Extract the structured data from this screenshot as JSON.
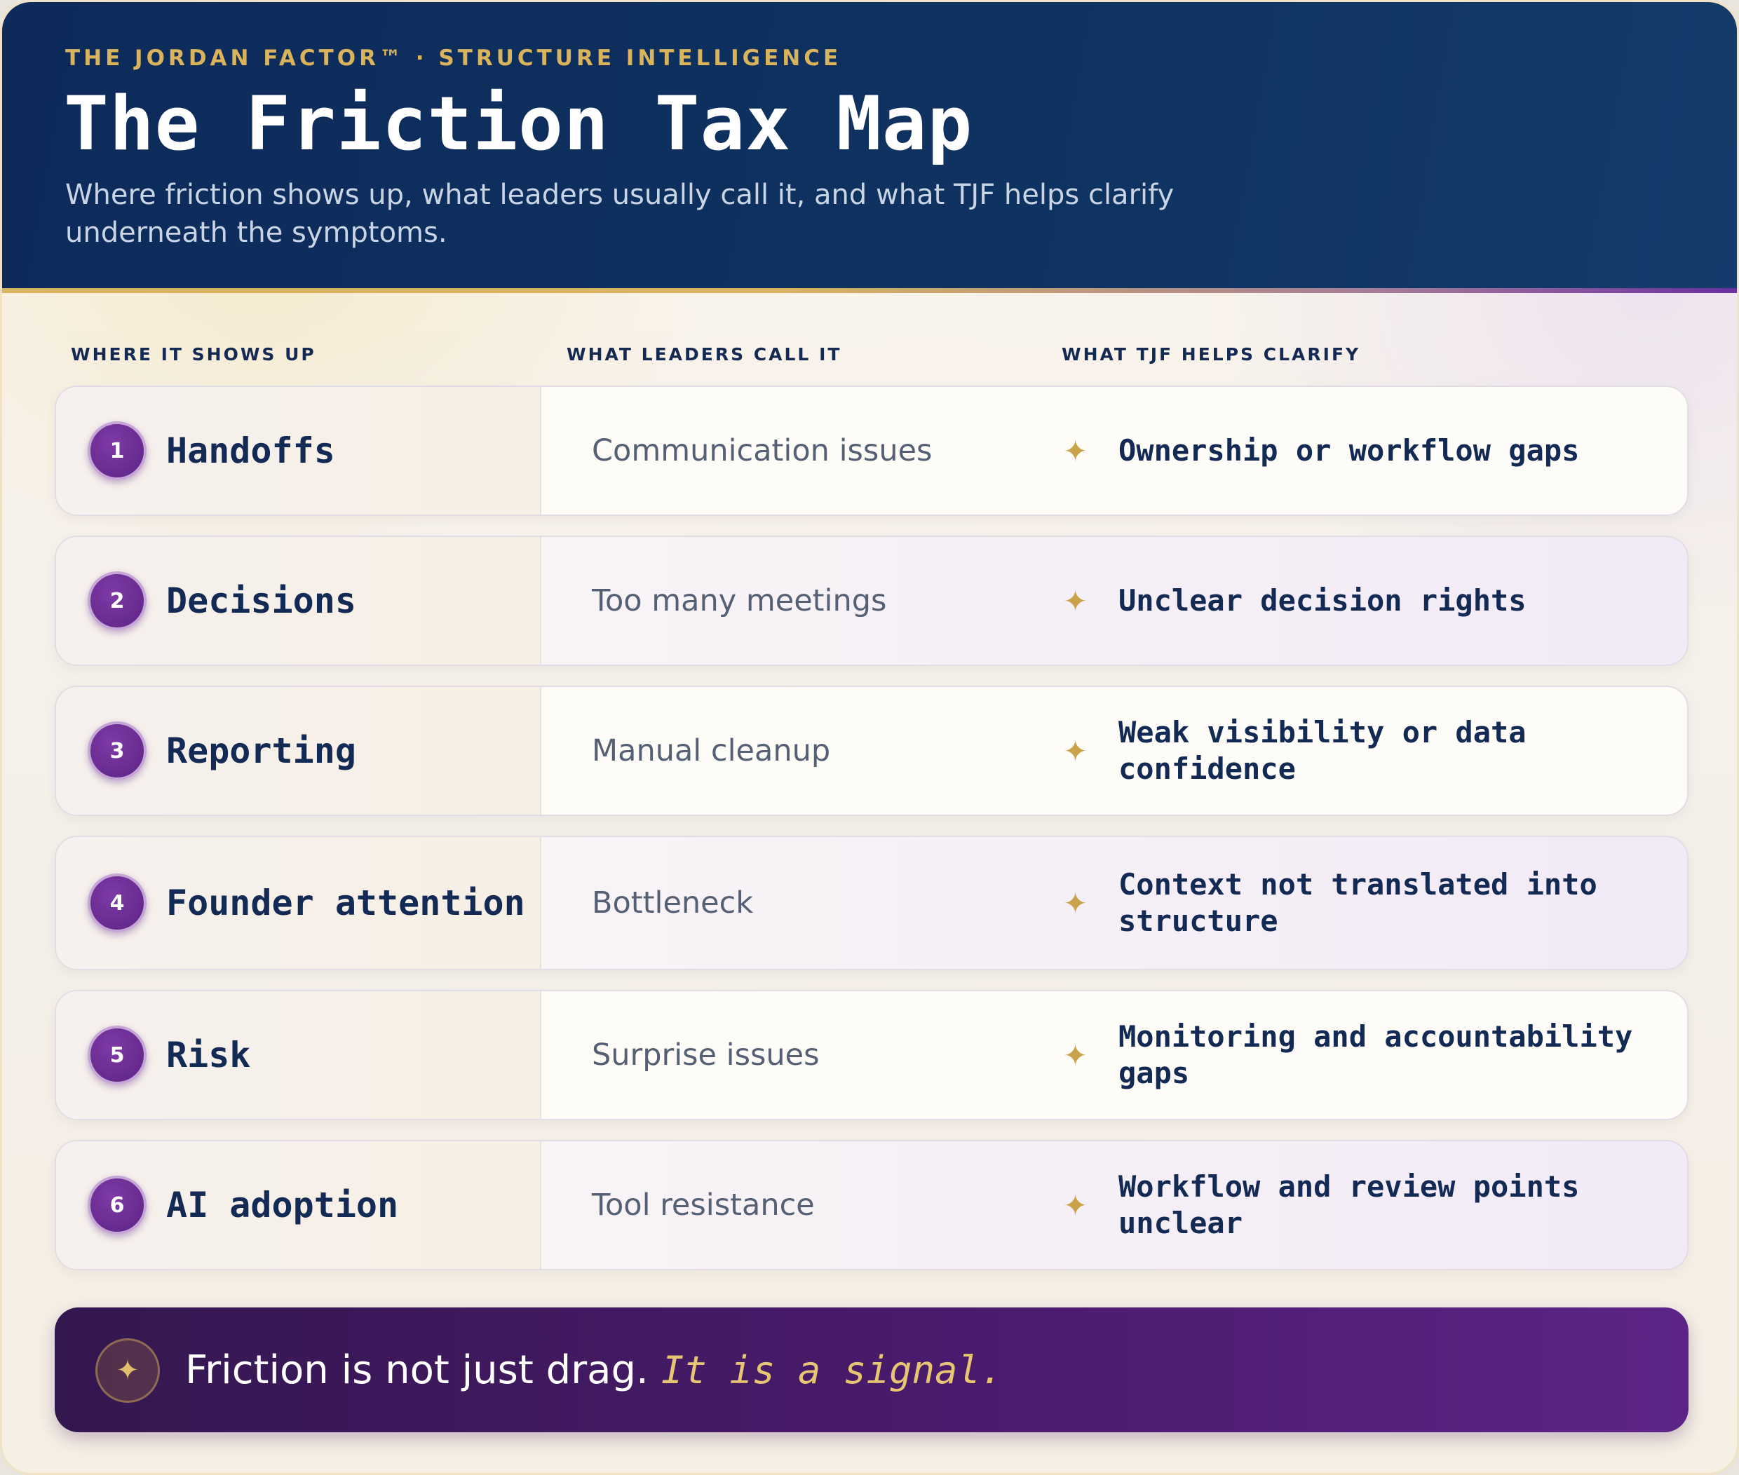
{
  "header": {
    "eyebrow": "THE JORDAN FACTOR™ · STRUCTURE INTELLIGENCE",
    "title": "The Friction Tax Map",
    "subtitle": "Where friction shows up, what leaders usually call it, and what TJF helps clarify underneath the symptoms."
  },
  "columns": {
    "where": "WHERE IT SHOWS UP",
    "call": "WHAT LEADERS CALL IT",
    "clarify": "WHAT TJF HELPS CLARIFY"
  },
  "rows": [
    {
      "num": "1",
      "where": "Handoffs",
      "call": "Communication issues",
      "clarify": "Ownership or workflow gaps"
    },
    {
      "num": "2",
      "where": "Decisions",
      "call": "Too many meetings",
      "clarify": "Unclear decision rights"
    },
    {
      "num": "3",
      "where": "Reporting",
      "call": "Manual cleanup",
      "clarify": "Weak visibility or data confidence"
    },
    {
      "num": "4",
      "where": "Founder attention",
      "call": "Bottleneck",
      "clarify": "Context not translated into structure"
    },
    {
      "num": "5",
      "where": "Risk",
      "call": "Surprise issues",
      "clarify": "Monitoring and accountability gaps"
    },
    {
      "num": "6",
      "where": "AI adoption",
      "call": "Tool resistance",
      "clarify": "Workflow and review points unclear"
    }
  ],
  "icons": {
    "row_marker": "sparkle-star-icon",
    "footer": "sparkle-star-icon"
  },
  "footer": {
    "text": "Friction is not just drag.",
    "emphasis": "It is a signal."
  },
  "colors": {
    "navy": "#0f3361",
    "gold": "#d9b45c",
    "purple": "#5d2385"
  }
}
